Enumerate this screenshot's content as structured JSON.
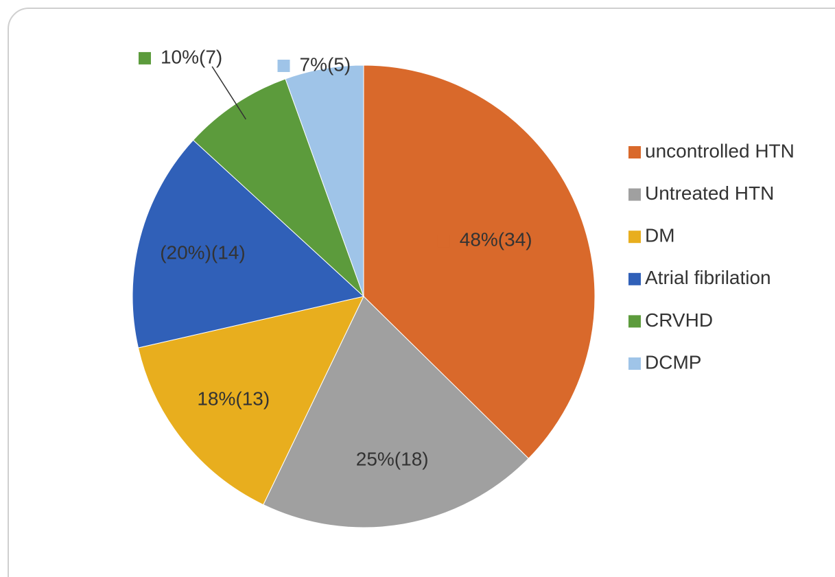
{
  "chart_data": {
    "type": "pie",
    "categories": [
      "uncontrolled HTN",
      "Untreated HTN",
      "DM",
      "Atrial fibrilation",
      "CRVHD",
      "DCMP"
    ],
    "values": [
      34,
      18,
      13,
      14,
      7,
      5
    ],
    "value_labels": [
      "48%(34)",
      "25%(18)",
      "18%(13)",
      "(20%)(14)",
      "10%(7)",
      "7%(5)"
    ],
    "colors": [
      "#d9692b",
      "#a0a0a0",
      "#e8ae1e",
      "#3060b8",
      "#5c9b3c",
      "#9fc4e8"
    ],
    "legend": "right"
  }
}
